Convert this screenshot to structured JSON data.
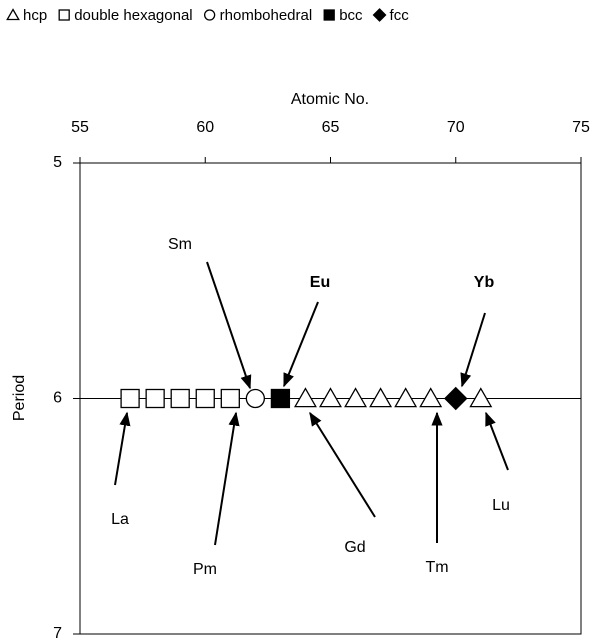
{
  "chart_data": {
    "type": "scatter",
    "xlabel": "Atomic No.",
    "ylabel": "Period",
    "xlim": [
      55,
      75
    ],
    "xticks": [
      55,
      60,
      65,
      70,
      75
    ],
    "ylim": [
      5,
      7
    ],
    "yticks": [
      5,
      6,
      7
    ],
    "y_inverted": true,
    "x_axis_position": "top",
    "grid": true,
    "series": [
      {
        "name": "hcp",
        "marker": "triangle",
        "filled": false,
        "color": "#000000",
        "x": [
          64,
          65,
          66,
          67,
          68,
          69,
          71
        ],
        "values": [
          6,
          6,
          6,
          6,
          6,
          6,
          6
        ]
      },
      {
        "name": "double hexagonal",
        "marker": "square",
        "filled": false,
        "color": "#000000",
        "x": [
          57,
          58,
          59,
          60,
          61
        ],
        "values": [
          6,
          6,
          6,
          6,
          6
        ]
      },
      {
        "name": "rhombohedral",
        "marker": "circle",
        "filled": false,
        "color": "#000000",
        "x": [
          62
        ],
        "values": [
          6
        ]
      },
      {
        "name": "bcc",
        "marker": "square",
        "filled": true,
        "color": "#000000",
        "x": [
          63
        ],
        "values": [
          6
        ]
      },
      {
        "name": "fcc",
        "marker": "diamond",
        "filled": true,
        "color": "#000000",
        "x": [
          70
        ],
        "values": [
          6
        ]
      }
    ],
    "annotations": [
      {
        "text": "Sm",
        "bold": false
      },
      {
        "text": "Eu",
        "bold": true
      },
      {
        "text": "Yb",
        "bold": true
      },
      {
        "text": "La",
        "bold": false
      },
      {
        "text": "Pm",
        "bold": false
      },
      {
        "text": "Gd",
        "bold": false
      },
      {
        "text": "Tm",
        "bold": false
      },
      {
        "text": "Lu",
        "bold": false
      }
    ]
  }
}
